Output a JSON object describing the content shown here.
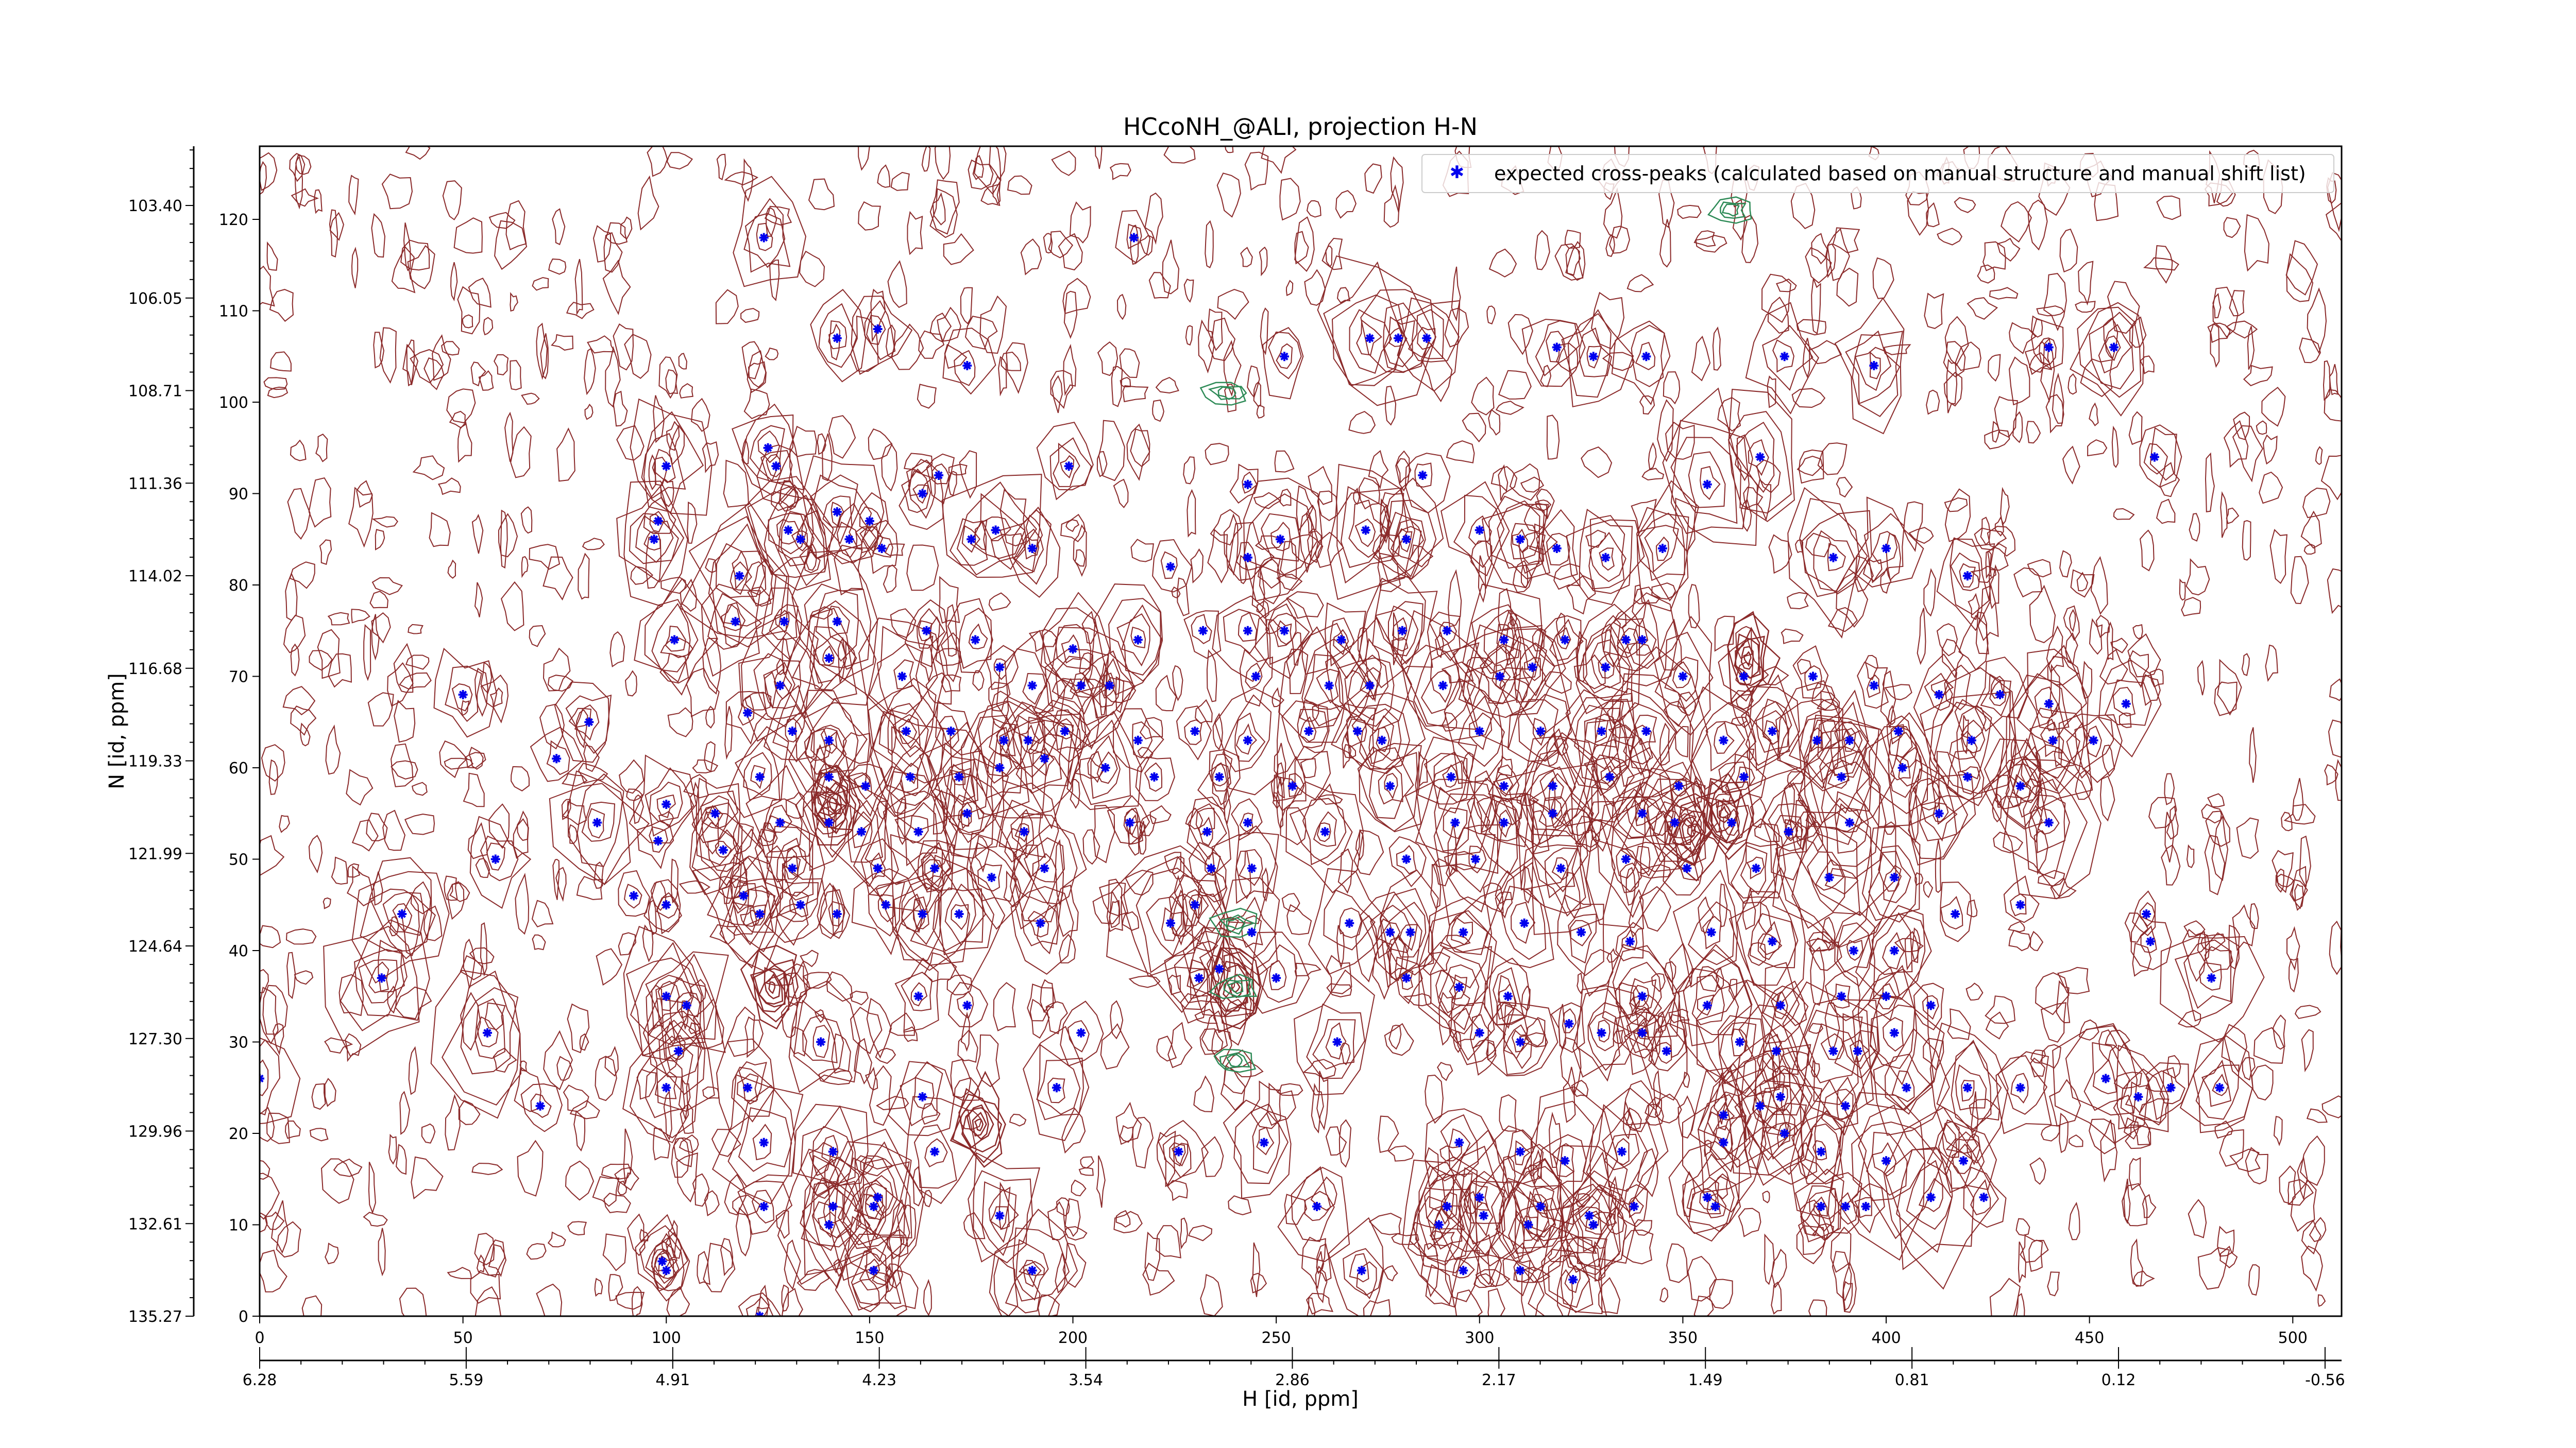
{
  "chart_data": {
    "type": "scatter",
    "title": "HCcoNH_@ALI, projection H-N",
    "xlabel": "H [id, ppm]",
    "ylabel": "N [id, ppm]",
    "xlim": [
      0,
      512
    ],
    "ylim": [
      0,
      128
    ],
    "grid": false,
    "legend_position": "top-right",
    "index_x_ticks": [
      "0",
      "50",
      "100",
      "150",
      "200",
      "250",
      "300",
      "350",
      "400",
      "450",
      "500"
    ],
    "ppm_x_ticks": [
      "6.28",
      "5.59",
      "4.91",
      "4.23",
      "3.54",
      "2.86",
      "2.17",
      "1.49",
      "0.81",
      "0.12",
      "-0.56"
    ],
    "index_y_ticks": [
      "0",
      "10",
      "20",
      "30",
      "40",
      "50",
      "60",
      "70",
      "80",
      "90",
      "100",
      "110",
      "120"
    ],
    "ppm_y_ticks": [
      "135.27",
      "132.61",
      "129.96",
      "127.30",
      "124.64",
      "121.99",
      "119.33",
      "116.68",
      "114.02",
      "111.36",
      "108.71",
      "106.05",
      "103.40"
    ],
    "colors": {
      "peaks": "#0000ee",
      "positive_contours": "#8b2a2a",
      "negative_contours": "#2e8b57"
    },
    "series": [
      {
        "name": "expected cross-peaks (calculated based on manual structure and manual shift list)",
        "points": [
          [
            124,
            118
          ],
          [
            215,
            118
          ],
          [
            142,
            107
          ],
          [
            152,
            108
          ],
          [
            174,
            104
          ],
          [
            252,
            105
          ],
          [
            273,
            107
          ],
          [
            280,
            107
          ],
          [
            287,
            107
          ],
          [
            319,
            106
          ],
          [
            328,
            105
          ],
          [
            341,
            105
          ],
          [
            375,
            105
          ],
          [
            397,
            104
          ],
          [
            440,
            106
          ],
          [
            456,
            106
          ],
          [
            125,
            95
          ],
          [
            127,
            93
          ],
          [
            167,
            92
          ],
          [
            199,
            93
          ],
          [
            243,
            91
          ],
          [
            286,
            92
          ],
          [
            356,
            91
          ],
          [
            369,
            94
          ],
          [
            466,
            94
          ],
          [
            100,
            93
          ],
          [
            98,
            87
          ],
          [
            97,
            85
          ],
          [
            142,
            88
          ],
          [
            150,
            87
          ],
          [
            163,
            90
          ],
          [
            130,
            86
          ],
          [
            133,
            85
          ],
          [
            145,
            85
          ],
          [
            153,
            84
          ],
          [
            175,
            85
          ],
          [
            181,
            86
          ],
          [
            190,
            84
          ],
          [
            224,
            82
          ],
          [
            243,
            83
          ],
          [
            251,
            85
          ],
          [
            272,
            86
          ],
          [
            282,
            85
          ],
          [
            300,
            86
          ],
          [
            310,
            85
          ],
          [
            319,
            84
          ],
          [
            331,
            83
          ],
          [
            345,
            84
          ],
          [
            387,
            83
          ],
          [
            400,
            84
          ],
          [
            420,
            81
          ],
          [
            118,
            81
          ],
          [
            102,
            74
          ],
          [
            117,
            76
          ],
          [
            129,
            76
          ],
          [
            142,
            76
          ],
          [
            164,
            75
          ],
          [
            176,
            74
          ],
          [
            200,
            73
          ],
          [
            216,
            74
          ],
          [
            232,
            75
          ],
          [
            243,
            75
          ],
          [
            252,
            75
          ],
          [
            266,
            74
          ],
          [
            281,
            75
          ],
          [
            292,
            75
          ],
          [
            306,
            74
          ],
          [
            321,
            74
          ],
          [
            336,
            74
          ],
          [
            340,
            74
          ],
          [
            128,
            69
          ],
          [
            140,
            72
          ],
          [
            158,
            70
          ],
          [
            182,
            71
          ],
          [
            190,
            69
          ],
          [
            202,
            69
          ],
          [
            209,
            69
          ],
          [
            245,
            70
          ],
          [
            263,
            69
          ],
          [
            273,
            69
          ],
          [
            291,
            69
          ],
          [
            305,
            70
          ],
          [
            313,
            71
          ],
          [
            331,
            71
          ],
          [
            350,
            70
          ],
          [
            365,
            70
          ],
          [
            382,
            70
          ],
          [
            397,
            69
          ],
          [
            413,
            68
          ],
          [
            428,
            68
          ],
          [
            440,
            67
          ],
          [
            459,
            67
          ],
          [
            50,
            68
          ],
          [
            120,
            66
          ],
          [
            131,
            64
          ],
          [
            140,
            63
          ],
          [
            159,
            64
          ],
          [
            170,
            64
          ],
          [
            183,
            63
          ],
          [
            189,
            63
          ],
          [
            198,
            64
          ],
          [
            216,
            63
          ],
          [
            230,
            64
          ],
          [
            243,
            63
          ],
          [
            258,
            64
          ],
          [
            270,
            64
          ],
          [
            276,
            63
          ],
          [
            300,
            64
          ],
          [
            315,
            64
          ],
          [
            330,
            64
          ],
          [
            341,
            64
          ],
          [
            360,
            63
          ],
          [
            372,
            64
          ],
          [
            383,
            63
          ],
          [
            391,
            63
          ],
          [
            403,
            64
          ],
          [
            421,
            63
          ],
          [
            441,
            63
          ],
          [
            451,
            63
          ],
          [
            81,
            65
          ],
          [
            73,
            61
          ],
          [
            123,
            59
          ],
          [
            140,
            59
          ],
          [
            149,
            58
          ],
          [
            160,
            59
          ],
          [
            172,
            59
          ],
          [
            182,
            60
          ],
          [
            193,
            61
          ],
          [
            208,
            60
          ],
          [
            220,
            59
          ],
          [
            236,
            59
          ],
          [
            254,
            58
          ],
          [
            278,
            58
          ],
          [
            293,
            59
          ],
          [
            306,
            58
          ],
          [
            318,
            58
          ],
          [
            332,
            59
          ],
          [
            349,
            58
          ],
          [
            365,
            59
          ],
          [
            389,
            59
          ],
          [
            404,
            60
          ],
          [
            420,
            59
          ],
          [
            433,
            58
          ],
          [
            100,
            56
          ],
          [
            83,
            54
          ],
          [
            112,
            55
          ],
          [
            128,
            54
          ],
          [
            140,
            54
          ],
          [
            148,
            53
          ],
          [
            162,
            53
          ],
          [
            174,
            55
          ],
          [
            188,
            53
          ],
          [
            214,
            54
          ],
          [
            233,
            53
          ],
          [
            243,
            54
          ],
          [
            262,
            53
          ],
          [
            294,
            54
          ],
          [
            306,
            54
          ],
          [
            318,
            55
          ],
          [
            340,
            55
          ],
          [
            348,
            54
          ],
          [
            362,
            54
          ],
          [
            376,
            53
          ],
          [
            391,
            54
          ],
          [
            413,
            55
          ],
          [
            440,
            54
          ],
          [
            98,
            52
          ],
          [
            58,
            50
          ],
          [
            114,
            51
          ],
          [
            131,
            49
          ],
          [
            152,
            49
          ],
          [
            166,
            49
          ],
          [
            180,
            48
          ],
          [
            193,
            49
          ],
          [
            234,
            49
          ],
          [
            244,
            49
          ],
          [
            282,
            50
          ],
          [
            299,
            50
          ],
          [
            320,
            49
          ],
          [
            336,
            50
          ],
          [
            351,
            49
          ],
          [
            368,
            49
          ],
          [
            386,
            48
          ],
          [
            402,
            48
          ],
          [
            35,
            44
          ],
          [
            92,
            46
          ],
          [
            100,
            45
          ],
          [
            119,
            46
          ],
          [
            123,
            44
          ],
          [
            133,
            45
          ],
          [
            142,
            44
          ],
          [
            154,
            45
          ],
          [
            163,
            44
          ],
          [
            172,
            44
          ],
          [
            192,
            43
          ],
          [
            224,
            43
          ],
          [
            230,
            45
          ],
          [
            244,
            42
          ],
          [
            268,
            43
          ],
          [
            278,
            42
          ],
          [
            283,
            42
          ],
          [
            296,
            42
          ],
          [
            311,
            43
          ],
          [
            325,
            42
          ],
          [
            337,
            41
          ],
          [
            357,
            42
          ],
          [
            372,
            41
          ],
          [
            392,
            40
          ],
          [
            402,
            40
          ],
          [
            417,
            44
          ],
          [
            433,
            45
          ],
          [
            464,
            44
          ],
          [
            465,
            41
          ],
          [
            30,
            37
          ],
          [
            100,
            35
          ],
          [
            105,
            34
          ],
          [
            162,
            35
          ],
          [
            174,
            34
          ],
          [
            231,
            37
          ],
          [
            236,
            38
          ],
          [
            250,
            37
          ],
          [
            282,
            37
          ],
          [
            295,
            36
          ],
          [
            307,
            35
          ],
          [
            340,
            35
          ],
          [
            356,
            34
          ],
          [
            374,
            34
          ],
          [
            389,
            35
          ],
          [
            400,
            35
          ],
          [
            411,
            34
          ],
          [
            480,
            37
          ],
          [
            56,
            31
          ],
          [
            103,
            29
          ],
          [
            138,
            30
          ],
          [
            202,
            31
          ],
          [
            265,
            30
          ],
          [
            300,
            31
          ],
          [
            310,
            30
          ],
          [
            322,
            32
          ],
          [
            330,
            31
          ],
          [
            340,
            31
          ],
          [
            346,
            29
          ],
          [
            364,
            30
          ],
          [
            373,
            29
          ],
          [
            387,
            29
          ],
          [
            393,
            29
          ],
          [
            402,
            31
          ],
          [
            0,
            26
          ],
          [
            69,
            23
          ],
          [
            100,
            25
          ],
          [
            120,
            25
          ],
          [
            163,
            24
          ],
          [
            196,
            25
          ],
          [
            360,
            22
          ],
          [
            369,
            23
          ],
          [
            374,
            24
          ],
          [
            390,
            23
          ],
          [
            405,
            25
          ],
          [
            420,
            25
          ],
          [
            433,
            25
          ],
          [
            454,
            26
          ],
          [
            462,
            24
          ],
          [
            470,
            25
          ],
          [
            482,
            25
          ],
          [
            124,
            19
          ],
          [
            141,
            18
          ],
          [
            166,
            18
          ],
          [
            226,
            18
          ],
          [
            247,
            19
          ],
          [
            295,
            19
          ],
          [
            310,
            18
          ],
          [
            321,
            17
          ],
          [
            335,
            18
          ],
          [
            360,
            19
          ],
          [
            375,
            20
          ],
          [
            384,
            18
          ],
          [
            400,
            17
          ],
          [
            419,
            17
          ],
          [
            124,
            12
          ],
          [
            141,
            12
          ],
          [
            151,
            12
          ],
          [
            152,
            13
          ],
          [
            260,
            12
          ],
          [
            292,
            12
          ],
          [
            300,
            13
          ],
          [
            315,
            12
          ],
          [
            327,
            11
          ],
          [
            338,
            12
          ],
          [
            356,
            13
          ],
          [
            358,
            12
          ],
          [
            384,
            12
          ],
          [
            390,
            12
          ],
          [
            395,
            12
          ],
          [
            411,
            13
          ],
          [
            424,
            13
          ],
          [
            140,
            10
          ],
          [
            182,
            11
          ],
          [
            290,
            10
          ],
          [
            301,
            11
          ],
          [
            312,
            10
          ],
          [
            328,
            10
          ],
          [
            99,
            6
          ],
          [
            100,
            5
          ],
          [
            151,
            5
          ],
          [
            190,
            5
          ],
          [
            271,
            5
          ],
          [
            296,
            5
          ],
          [
            310,
            5
          ],
          [
            323,
            4
          ],
          [
            123,
            0
          ]
        ]
      }
    ]
  }
}
